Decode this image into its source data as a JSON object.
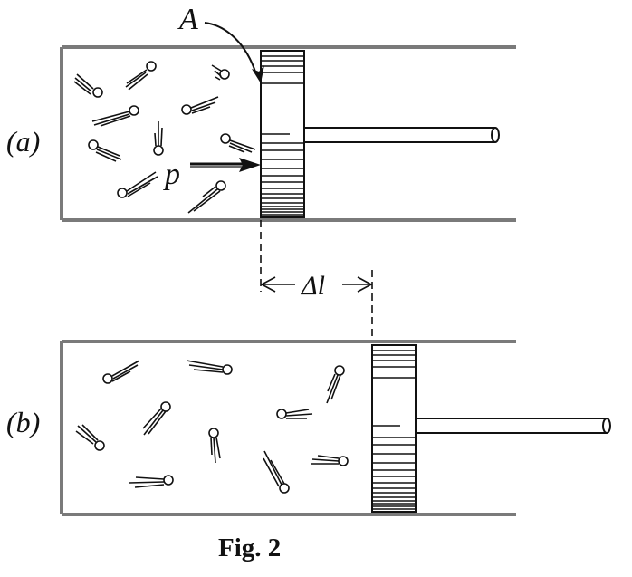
{
  "labels": {
    "panel_a": "(a)",
    "panel_b": "(b)",
    "area": "A",
    "pressure": "p",
    "displacement": "Δl"
  },
  "caption": "Fig. 2",
  "colors": {
    "ink": "#111111",
    "cylinder_wall": "#7a7a7a"
  }
}
